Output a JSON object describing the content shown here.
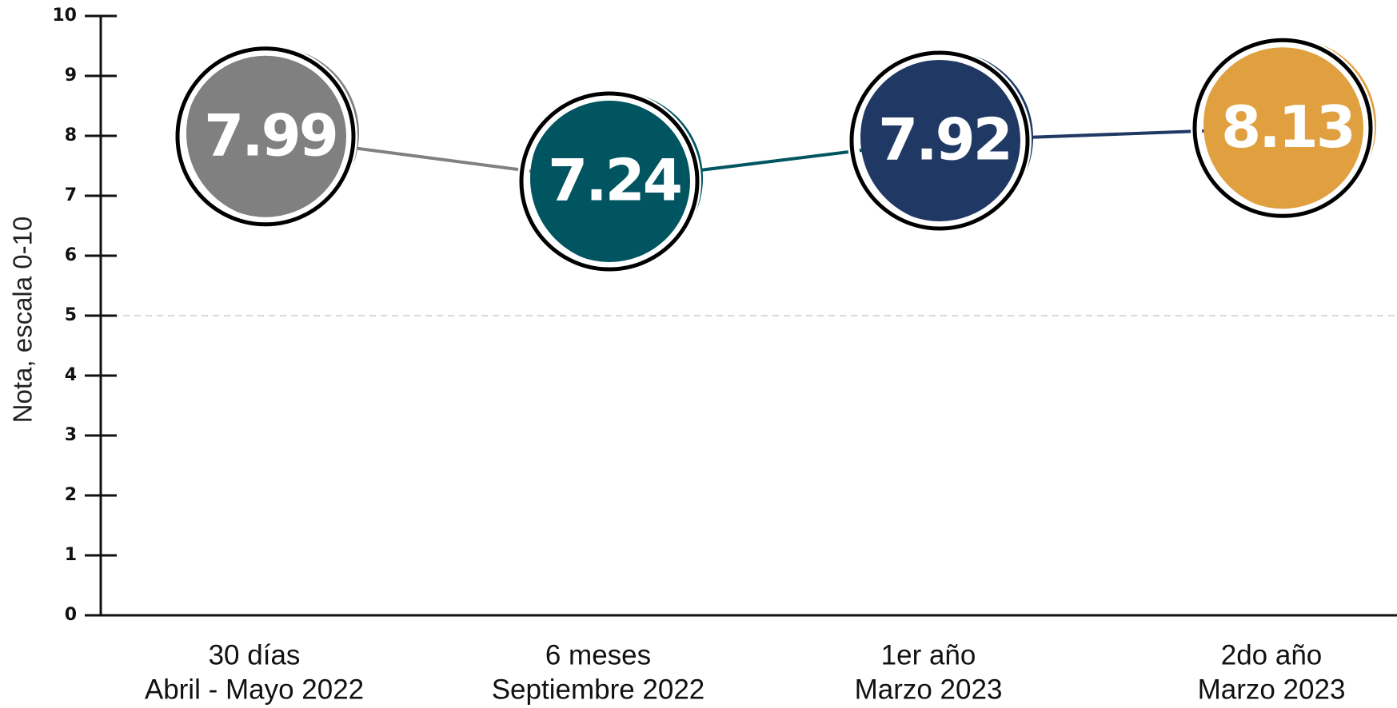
{
  "chart_data": {
    "type": "line",
    "y_label": "Nota, escala 0-10",
    "categories": [
      [
        "30 días",
        "Abril - Mayo 2022"
      ],
      [
        "6 meses",
        "Septiembre 2022"
      ],
      [
        "1er año",
        "Marzo 2023"
      ],
      [
        "2do año",
        "Marzo 2023"
      ]
    ],
    "values": [
      7.99,
      7.24,
      7.92,
      8.13
    ],
    "colors": [
      "#808080",
      "#005560",
      "#1f3864",
      "#e0a040"
    ],
    "ylim": [
      0,
      10
    ],
    "yticks": [
      0,
      1,
      2,
      3,
      4,
      5,
      6,
      7,
      8,
      9,
      10
    ],
    "reference_line": 5
  }
}
